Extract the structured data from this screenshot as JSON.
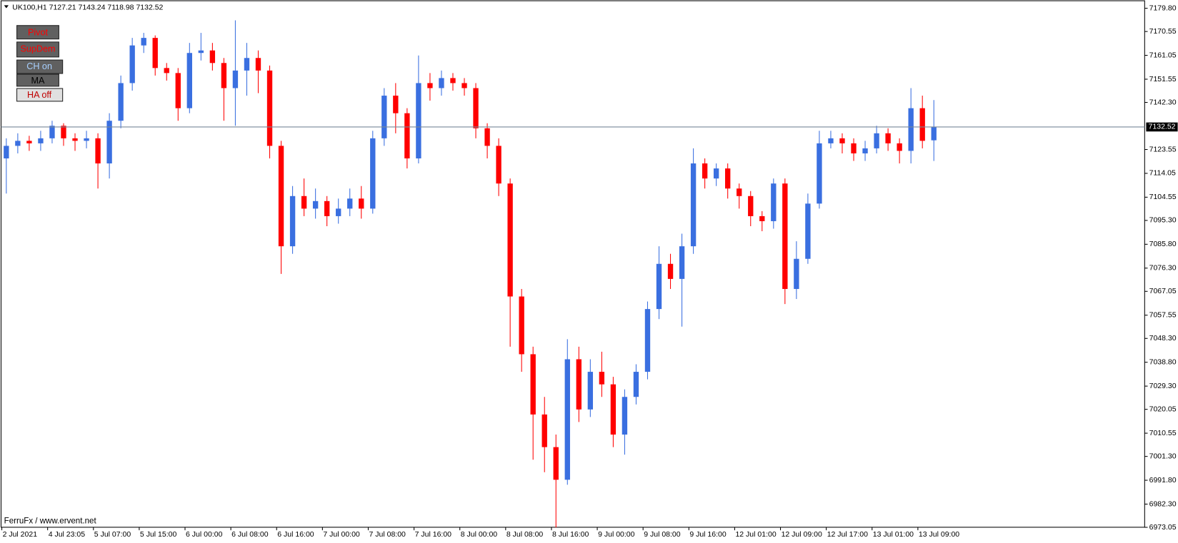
{
  "chart_data": {
    "type": "candlestick",
    "title": "UK100,H1  7127.21 7143.24 7118.98 7132.52",
    "up_color": "#3a6fe0",
    "down_color": "#ff0000",
    "categories": [
      "2 Jul 2021",
      null,
      null,
      null,
      "4 Jul 23:05",
      null,
      null,
      null,
      "5 Jul 07:00",
      null,
      null,
      null,
      "5 Jul 15:00",
      null,
      null,
      null,
      "6 Jul 00:00",
      null,
      null,
      null,
      "6 Jul 08:00",
      null,
      null,
      null,
      "6 Jul 16:00",
      null,
      null,
      null,
      "7 Jul 00:00",
      null,
      null,
      null,
      "7 Jul 08:00",
      null,
      null,
      null,
      "7 Jul 16:00",
      null,
      null,
      null,
      "8 Jul 00:00",
      null,
      null,
      null,
      "8 Jul 08:00",
      null,
      null,
      null,
      "8 Jul 16:00",
      null,
      null,
      null,
      "9 Jul 00:00",
      null,
      null,
      null,
      "9 Jul 08:00",
      null,
      null,
      null,
      "9 Jul 16:00",
      null,
      null,
      null,
      "12 Jul 01:00",
      null,
      null,
      null,
      "12 Jul 09:00",
      null,
      null,
      null,
      "12 Jul 17:00",
      null,
      null,
      null,
      "13 Jul 01:00",
      null,
      null,
      null,
      "13 Jul 09:00",
      null
    ],
    "open": [
      7120,
      7125,
      7127,
      7126,
      7128,
      7133,
      7128,
      7127,
      7128,
      7118,
      7135,
      7150,
      7165,
      7168,
      7156,
      7154,
      7140,
      7162,
      7163,
      7158,
      7148,
      7155,
      7160,
      7155,
      7125,
      7085,
      7105,
      7100,
      7103,
      7097,
      7100,
      7104,
      7100,
      7128,
      7145,
      7138,
      7120,
      7150,
      7148,
      7152,
      7150,
      7148,
      7132,
      7125,
      7110,
      7065,
      7042,
      7018,
      7005,
      6992,
      7040,
      7020,
      7035,
      7030,
      7010,
      7025,
      7035,
      7060,
      7078,
      7072,
      7085,
      7118,
      7112,
      7116,
      7108,
      7105,
      7097,
      7095,
      7110,
      7068,
      7080,
      7102,
      7126,
      7128,
      7126,
      7122,
      7124,
      7130,
      7126,
      7123,
      7140,
      7127.21
    ],
    "high": [
      7128,
      7130,
      7129,
      7131,
      7135,
      7134,
      7130,
      7131,
      7130,
      7138,
      7153,
      7168,
      7170,
      7169,
      7158,
      7156,
      7166,
      7170,
      7166,
      7160,
      7175,
      7166,
      7163,
      7157,
      7127,
      7109,
      7112,
      7108,
      7105,
      7104,
      7108,
      7109,
      7131,
      7148,
      7150,
      7140,
      7161,
      7154,
      7155,
      7154,
      7152,
      7150,
      7134,
      7128,
      7112,
      7068,
      7045,
      7025,
      7010,
      7048,
      7045,
      7040,
      7043,
      7033,
      7028,
      7038,
      7063,
      7085,
      7082,
      7090,
      7124,
      7120,
      7118,
      7118,
      7110,
      7107,
      7099,
      7112,
      7112,
      7087,
      7106,
      7131,
      7131,
      7130,
      7128,
      7127,
      7133,
      7132,
      7128,
      7148,
      7145,
      7143.24
    ],
    "low": [
      7106,
      7122,
      7123,
      7123,
      7126,
      7125,
      7123,
      7124,
      7108,
      7112,
      7132,
      7147,
      7162,
      7153,
      7151,
      7135,
      7138,
      7159,
      7155,
      7135,
      7133,
      7145,
      7146,
      7120,
      7074,
      7082,
      7097,
      7096,
      7093,
      7094,
      7097,
      7096,
      7098,
      7125,
      7130,
      7116,
      7118,
      7143,
      7145,
      7147,
      7145,
      7128,
      7120,
      7105,
      7045,
      7035,
      7000,
      6995,
      6973,
      6990,
      7015,
      7017,
      7025,
      7005,
      7002,
      7022,
      7032,
      7056,
      7068,
      7053,
      7082,
      7108,
      7109,
      7104,
      7100,
      7093,
      7091,
      7092,
      7062,
      7064,
      7078,
      7100,
      7124,
      7122,
      7119,
      7119,
      7122,
      7123,
      7118,
      7118,
      7124,
      7118.98
    ],
    "close": [
      7125,
      7127,
      7126,
      7128,
      7133,
      7128,
      7127,
      7128,
      7118,
      7135,
      7150,
      7165,
      7168,
      7156,
      7154,
      7140,
      7162,
      7163,
      7158,
      7148,
      7155,
      7160,
      7155,
      7125,
      7085,
      7105,
      7100,
      7103,
      7097,
      7100,
      7104,
      7100,
      7128,
      7145,
      7138,
      7120,
      7150,
      7148,
      7152,
      7150,
      7148,
      7132,
      7125,
      7110,
      7065,
      7042,
      7018,
      7005,
      6992,
      7040,
      7020,
      7035,
      7030,
      7010,
      7025,
      7035,
      7060,
      7078,
      7072,
      7085,
      7118,
      7112,
      7116,
      7108,
      7105,
      7097,
      7095,
      7110,
      7068,
      7080,
      7102,
      7126,
      7128,
      7126,
      7122,
      7124,
      7130,
      7126,
      7123,
      7140,
      7127,
      7132.52
    ],
    "last_price": 7132.52,
    "ylim": [
      6968.6,
      7182.5
    ],
    "yticks": [
      {
        "value": 7179.8,
        "label": "7179.80"
      },
      7170.55,
      7161.05,
      7151.55,
      {
        "value": 7142.3,
        "label": "7142.30"
      },
      7123.55,
      7114.05,
      7104.55,
      {
        "value": 7095.3,
        "label": "7095.30"
      },
      {
        "value": 7085.8,
        "label": "7085.80"
      },
      {
        "value": 7076.3,
        "label": "7076.30"
      },
      7067.05,
      7057.55,
      {
        "value": 7048.3,
        "label": "7048.30"
      },
      {
        "value": 7038.8,
        "label": "7038.80"
      },
      {
        "value": 7029.3,
        "label": "7029.30"
      },
      7020.05,
      7010.55,
      {
        "value": 7001.3,
        "label": "7001.30"
      },
      {
        "value": 6991.8,
        "label": "6991.80"
      },
      {
        "value": 6982.3,
        "label": "6982.30"
      },
      6973.05
    ]
  },
  "panel": {
    "buttons": [
      "Pivot",
      "SupDem",
      "CH on",
      "MA",
      "HA off"
    ]
  },
  "footer": "FerruFx / www.ervent.net"
}
